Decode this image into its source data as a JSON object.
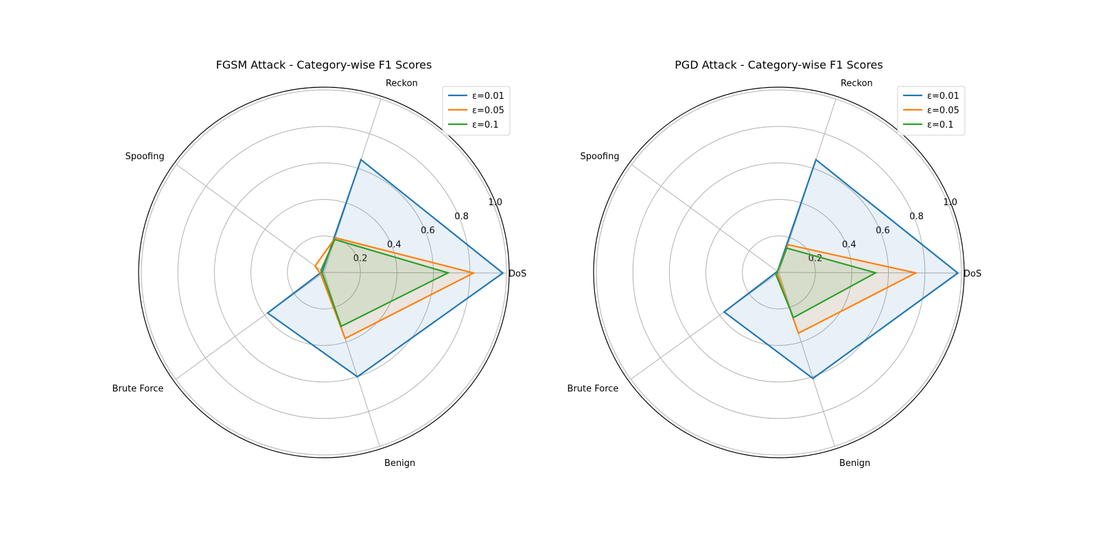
{
  "chart_data": [
    {
      "type": "radar",
      "title": "FGSM Attack - Category-wise F1 Scores",
      "categories": [
        "DoS",
        "Reckon",
        "Spoofing",
        "Brute Force",
        "Benign"
      ],
      "rticks": [
        "0.2",
        "0.4",
        "0.6",
        "0.8",
        "1.0"
      ],
      "rlim": [
        0,
        1.0
      ],
      "legend_position": "top-right",
      "series": [
        {
          "name": "ε=0.01",
          "color": "#1f77b4",
          "values": [
            0.98,
            0.65,
            0.01,
            0.38,
            0.6
          ]
        },
        {
          "name": "ε=0.05",
          "color": "#ff7f0e",
          "values": [
            0.82,
            0.2,
            0.06,
            0.02,
            0.38
          ]
        },
        {
          "name": "ε=0.1",
          "color": "#2ca02c",
          "values": [
            0.68,
            0.19,
            0.02,
            0.01,
            0.31
          ]
        }
      ]
    },
    {
      "type": "radar",
      "title": "PGD Attack - Category-wise F1 Scores",
      "categories": [
        "DoS",
        "Reckon",
        "Spoofing",
        "Brute Force",
        "Benign"
      ],
      "rticks": [
        "0.2",
        "0.4",
        "0.6",
        "0.8",
        "1.0"
      ],
      "rlim": [
        0,
        1.0
      ],
      "legend_position": "top-right",
      "series": [
        {
          "name": "ε=0.01",
          "color": "#1f77b4",
          "values": [
            0.98,
            0.65,
            0.01,
            0.37,
            0.61
          ]
        },
        {
          "name": "ε=0.05",
          "color": "#ff7f0e",
          "values": [
            0.75,
            0.16,
            0.01,
            0.01,
            0.35
          ]
        },
        {
          "name": "ε=0.1",
          "color": "#2ca02c",
          "values": [
            0.53,
            0.14,
            0.01,
            0.02,
            0.26
          ]
        }
      ]
    }
  ]
}
